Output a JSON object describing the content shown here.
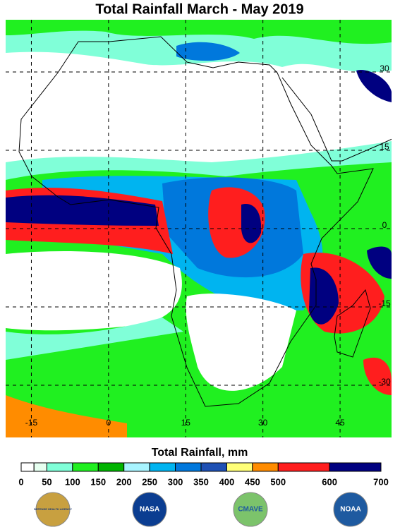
{
  "title": "Total Rainfall March - May 2019",
  "map": {
    "lon_range": [
      -20,
      55
    ],
    "lat_range": [
      -40,
      40
    ],
    "lat_labels": [
      30,
      15,
      0,
      -15,
      -30
    ],
    "lon_labels": [
      -15,
      0,
      15,
      30,
      45
    ]
  },
  "colorbar": {
    "label": "Total Rainfall, mm",
    "range": [
      0,
      700
    ],
    "bounds": [
      0,
      25,
      50,
      100,
      150,
      200,
      250,
      300,
      350,
      400,
      450,
      500,
      600,
      700
    ],
    "colors": [
      "#ffffff",
      "#e6fff0",
      "#80ffd8",
      "#20f020",
      "#00b400",
      "#a8f4ff",
      "#00b4f0",
      "#0078dc",
      "#1e50b4",
      "#ffff78",
      "#ff8c00",
      "#ff1e1e",
      "#000080"
    ],
    "ticks": [
      0,
      50,
      100,
      150,
      200,
      250,
      300,
      350,
      400,
      450,
      500,
      600,
      700
    ]
  },
  "logos": [
    "DEFENSE HEALTH AGENCY",
    "NASA",
    "CMAVE",
    "NOAA"
  ]
}
